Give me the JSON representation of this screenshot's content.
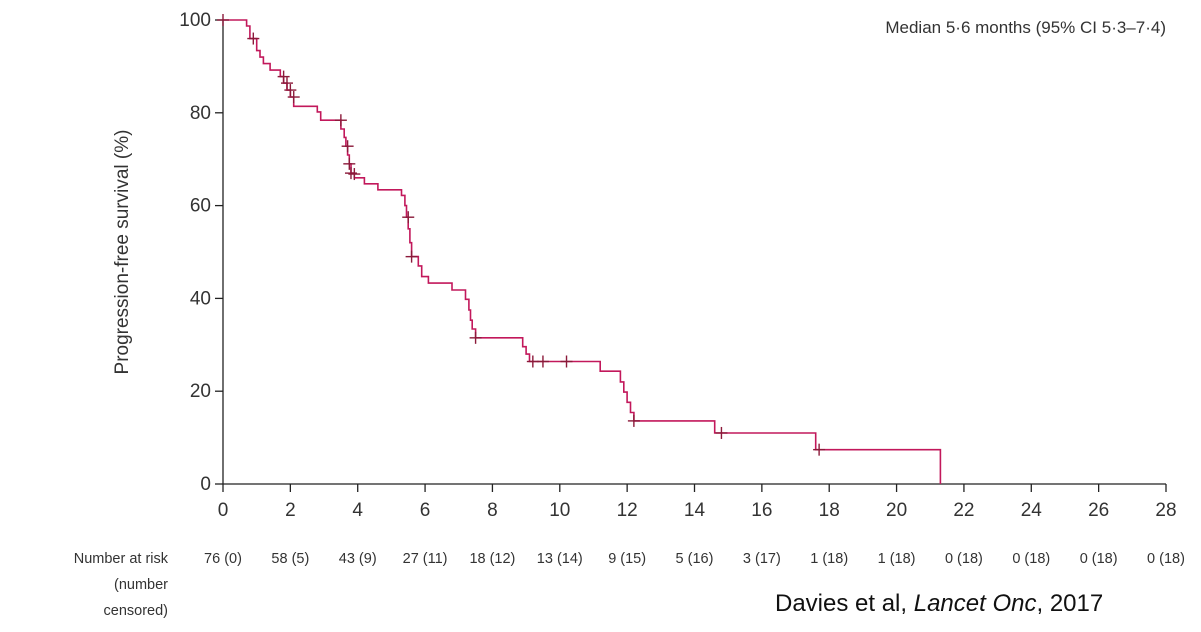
{
  "chart_data": {
    "type": "line",
    "subtype": "kaplan-meier",
    "ylabel": "Progression-free survival (%)",
    "xlabel": "",
    "xlim": [
      0,
      28
    ],
    "ylim": [
      0,
      100
    ],
    "x_ticks": [
      0,
      2,
      4,
      6,
      8,
      10,
      12,
      14,
      16,
      18,
      20,
      22,
      24,
      26,
      28
    ],
    "y_ticks": [
      0,
      20,
      40,
      60,
      80,
      100
    ],
    "grid": false,
    "median_annotation": "Median 5·6 months (95% CI 5·3–7·4)",
    "line_color": "#c2185b",
    "censor_color": "#8b1a3a",
    "series": [
      {
        "curve": [
          [
            0,
            100
          ],
          [
            0.7,
            100
          ],
          [
            0.7,
            98.7
          ],
          [
            0.8,
            98.7
          ],
          [
            0.8,
            96
          ],
          [
            1.0,
            96
          ],
          [
            1.0,
            93.4
          ],
          [
            1.1,
            93.4
          ],
          [
            1.1,
            92
          ],
          [
            1.2,
            92
          ],
          [
            1.2,
            90.6
          ],
          [
            1.4,
            90.6
          ],
          [
            1.4,
            89.2
          ],
          [
            1.7,
            89.2
          ],
          [
            1.7,
            87.8
          ],
          [
            1.8,
            87.8
          ],
          [
            1.8,
            86.4
          ],
          [
            1.9,
            86.4
          ],
          [
            1.9,
            84.9
          ],
          [
            2.0,
            84.9
          ],
          [
            2.0,
            83.4
          ],
          [
            2.1,
            83.4
          ],
          [
            2.1,
            81.4
          ],
          [
            2.8,
            81.4
          ],
          [
            2.8,
            80.2
          ],
          [
            2.9,
            80.2
          ],
          [
            2.9,
            78.4
          ],
          [
            3.5,
            78.4
          ],
          [
            3.5,
            76.5
          ],
          [
            3.6,
            76.5
          ],
          [
            3.6,
            74.7
          ],
          [
            3.65,
            74.7
          ],
          [
            3.65,
            72.8
          ],
          [
            3.7,
            72.8
          ],
          [
            3.7,
            70.9
          ],
          [
            3.75,
            70.9
          ],
          [
            3.75,
            69.0
          ],
          [
            3.8,
            69.0
          ],
          [
            3.8,
            67.0
          ],
          [
            3.9,
            67.0
          ],
          [
            3.9,
            66.0
          ],
          [
            4.2,
            66.0
          ],
          [
            4.2,
            64.7
          ],
          [
            4.6,
            64.7
          ],
          [
            4.6,
            63.4
          ],
          [
            5.3,
            63.4
          ],
          [
            5.3,
            62.2
          ],
          [
            5.4,
            62.2
          ],
          [
            5.4,
            60.0
          ],
          [
            5.45,
            60.0
          ],
          [
            5.45,
            57.5
          ],
          [
            5.5,
            57.5
          ],
          [
            5.5,
            55.0
          ],
          [
            5.55,
            55.0
          ],
          [
            5.55,
            52.0
          ],
          [
            5.6,
            52.0
          ],
          [
            5.6,
            49.0
          ],
          [
            5.8,
            49.0
          ],
          [
            5.8,
            47.0
          ],
          [
            5.9,
            47.0
          ],
          [
            5.9,
            44.7
          ],
          [
            6.1,
            44.7
          ],
          [
            6.1,
            43.3
          ],
          [
            6.8,
            43.3
          ],
          [
            6.8,
            41.8
          ],
          [
            7.2,
            41.8
          ],
          [
            7.2,
            39.8
          ],
          [
            7.3,
            39.8
          ],
          [
            7.3,
            37.5
          ],
          [
            7.35,
            37.5
          ],
          [
            7.35,
            35.3
          ],
          [
            7.4,
            35.3
          ],
          [
            7.4,
            33.4
          ],
          [
            7.5,
            33.4
          ],
          [
            7.5,
            31.5
          ],
          [
            8.9,
            31.5
          ],
          [
            8.9,
            29.6
          ],
          [
            9.0,
            29.6
          ],
          [
            9.0,
            28.0
          ],
          [
            9.1,
            28.0
          ],
          [
            9.1,
            26.4
          ],
          [
            11.2,
            26.4
          ],
          [
            11.2,
            24.3
          ],
          [
            11.8,
            24.3
          ],
          [
            11.8,
            22.0
          ],
          [
            11.9,
            22.0
          ],
          [
            11.9,
            19.8
          ],
          [
            12.0,
            19.8
          ],
          [
            12.0,
            17.6
          ],
          [
            12.1,
            17.6
          ],
          [
            12.1,
            15.4
          ],
          [
            12.2,
            15.4
          ],
          [
            12.2,
            13.6
          ],
          [
            14.6,
            13.6
          ],
          [
            14.6,
            11.0
          ],
          [
            17.6,
            11.0
          ],
          [
            17.6,
            7.4
          ],
          [
            21.3,
            7.4
          ],
          [
            21.3,
            0
          ]
        ],
        "censored": [
          [
            0,
            100
          ],
          [
            0.9,
            96
          ],
          [
            1.8,
            87.8
          ],
          [
            1.9,
            86.4
          ],
          [
            2.0,
            84.9
          ],
          [
            2.1,
            83.4
          ],
          [
            3.5,
            78.4
          ],
          [
            3.7,
            72.8
          ],
          [
            3.75,
            69.0
          ],
          [
            3.8,
            67.0
          ],
          [
            3.9,
            66.8
          ],
          [
            5.5,
            57.5
          ],
          [
            5.6,
            49.0
          ],
          [
            7.5,
            31.5
          ],
          [
            9.2,
            26.4
          ],
          [
            9.5,
            26.4
          ],
          [
            10.2,
            26.4
          ],
          [
            12.2,
            13.6
          ],
          [
            14.8,
            11.0
          ],
          [
            17.7,
            7.4
          ]
        ]
      }
    ],
    "risk_table": {
      "label_lines": [
        "Number at risk",
        "(number",
        "censored)"
      ],
      "values": [
        "76 (0)",
        "58 (5)",
        "43 (9)",
        "27 (11)",
        "18 (12)",
        "13 (14)",
        "9 (15)",
        "5 (16)",
        "3 (17)",
        "1 (18)",
        "1 (18)",
        "0 (18)",
        "0 (18)",
        "0 (18)",
        "0 (18)"
      ]
    }
  },
  "citation": {
    "prefix": "Davies et al, ",
    "journal": "Lancet Onc",
    "suffix": ", 2017"
  }
}
